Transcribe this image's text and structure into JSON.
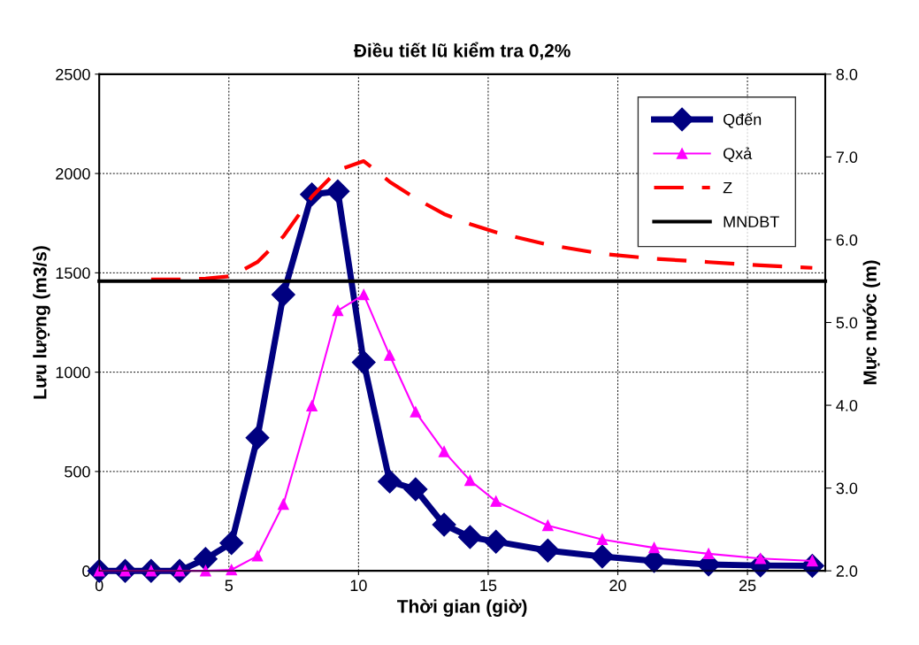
{
  "chart_data": {
    "type": "line",
    "title": "Điều tiết lũ kiểm tra 0,2%",
    "xlabel": "Thời gian (giờ)",
    "ylabel": "Lưu lượng (m3/s)",
    "y2label": "Mực nước (m)",
    "x": [
      0,
      1,
      2,
      3.1,
      4.1,
      5.1,
      6.1,
      7.1,
      8.2,
      9.2,
      10.2,
      11.2,
      12.2,
      13.3,
      14.3,
      15.3,
      17.3,
      19.4,
      21.4,
      23.5,
      25.5,
      27.5
    ],
    "series": [
      {
        "name": "Qđến",
        "color": "#000080",
        "marker": "diamond",
        "line_style": "solid",
        "values": [
          0,
          0,
          0,
          0,
          60,
          140,
          670,
          1390,
          1895,
          1910,
          1050,
          450,
          410,
          232,
          170,
          147,
          102,
          72,
          50,
          32,
          27,
          25
        ]
      },
      {
        "name": "Qxả",
        "color": "#ff00ff",
        "marker": "triangle",
        "line_style": "solid",
        "values": [
          0,
          0,
          0,
          0,
          0,
          5,
          75,
          335,
          830,
          1310,
          1390,
          1085,
          800,
          600,
          455,
          350,
          228,
          158,
          116,
          86,
          62,
          50
        ]
      },
      {
        "name": "Z",
        "color": "#ff0000",
        "marker": "none",
        "line_style": "dashed",
        "axis": "y2",
        "values": [
          null,
          null,
          5.52,
          5.52,
          5.53,
          5.56,
          5.73,
          6.04,
          6.52,
          6.84,
          6.95,
          6.7,
          6.5,
          6.31,
          6.19,
          6.09,
          5.94,
          5.83,
          5.77,
          5.73,
          5.69,
          5.66
        ]
      },
      {
        "name": "MNDBT",
        "color": "#000000",
        "marker": "none",
        "line_style": "solid",
        "axis": "y2",
        "x": [
          0,
          28
        ],
        "values": [
          5.5,
          5.5
        ]
      }
    ],
    "xlim": [
      0,
      28
    ],
    "xticks": [
      0,
      5,
      10,
      15,
      20,
      25
    ],
    "ylim": [
      0,
      2500
    ],
    "yticks": [
      0,
      500,
      1000,
      1500,
      2000,
      2500
    ],
    "y2lim": [
      2.0,
      8.0
    ],
    "y2ticks": [
      {
        "value": 2,
        "label": "2.0"
      },
      {
        "value": 3,
        "label": "3.0"
      },
      {
        "value": 4,
        "label": "4.0"
      },
      {
        "value": 5,
        "label": "5.0"
      },
      {
        "value": 6,
        "label": "6.0"
      },
      {
        "value": 7,
        "label": "7.0"
      },
      {
        "value": 8,
        "label": "8.0"
      }
    ],
    "grid": true,
    "legend": "top right"
  }
}
